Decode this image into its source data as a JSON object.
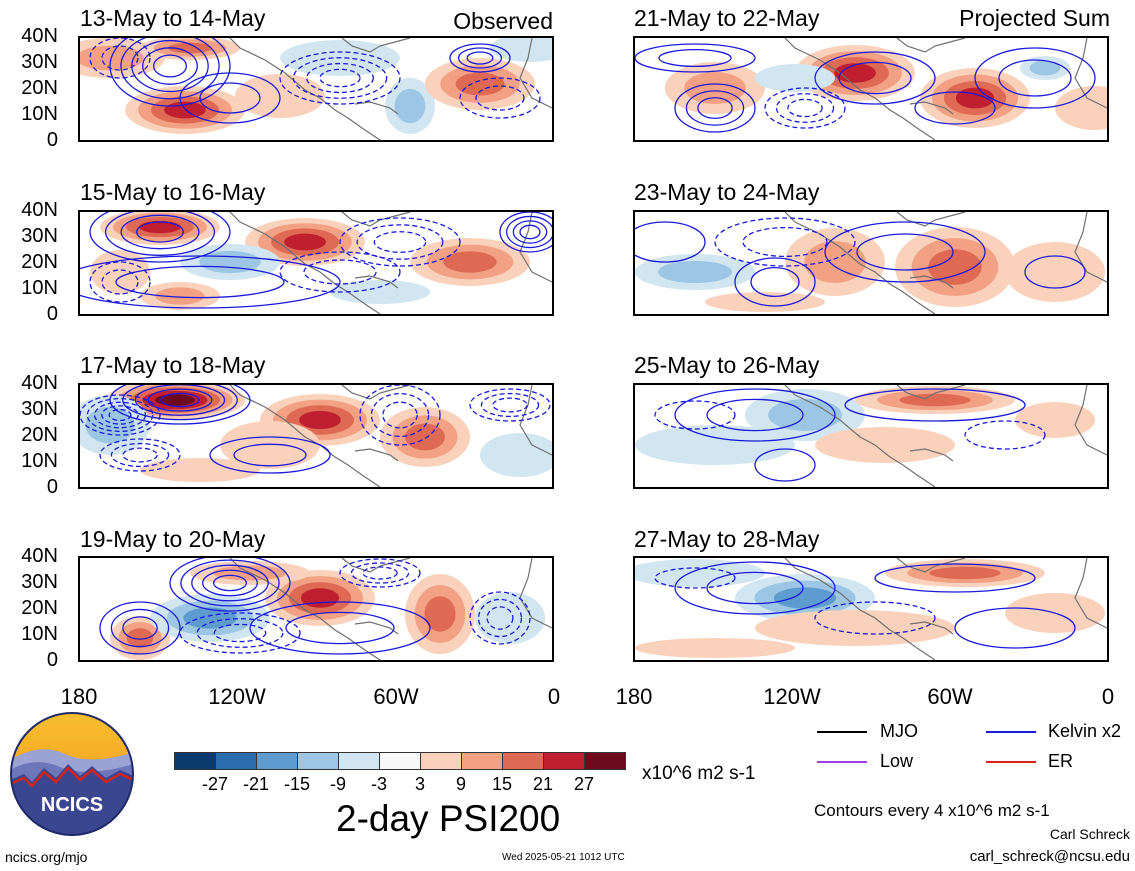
{
  "header": {
    "observed_label": "Observed",
    "projected_label": "Projected Sum"
  },
  "panels_left": [
    {
      "title": "13-May to 14-May"
    },
    {
      "title": "15-May to 16-May"
    },
    {
      "title": "17-May to 18-May"
    },
    {
      "title": "19-May to 20-May"
    }
  ],
  "panels_right": [
    {
      "title": "21-May to 22-May"
    },
    {
      "title": "23-May to 24-May"
    },
    {
      "title": "25-May to 26-May"
    },
    {
      "title": "27-May to 28-May"
    }
  ],
  "y_ticks": [
    "40N",
    "30N",
    "20N",
    "10N",
    "0"
  ],
  "x_ticks": [
    "180",
    "120W",
    "60W",
    "0"
  ],
  "legend": [
    {
      "label": "MJO",
      "color": "#000000"
    },
    {
      "label": "Kelvin x2",
      "color": "#1a1adc"
    },
    {
      "label": "Low",
      "color": "#a040e0"
    },
    {
      "label": "ER",
      "color": "#e02020"
    }
  ],
  "colorbar": {
    "colors": [
      "#0b3a6e",
      "#2c6db0",
      "#5e9ccf",
      "#9cc6e3",
      "#d2e6f2",
      "#f8f8f8",
      "#fad2bc",
      "#f2a184",
      "#de6a55",
      "#bf1f2e",
      "#6e0a1e"
    ],
    "tick_labels": [
      "-27",
      "-21",
      "-15",
      "-9",
      "-3",
      "3",
      "9",
      "15",
      "21",
      "27"
    ],
    "units": "x10^6 m2 s-1"
  },
  "main_title": "2-day PSI200",
  "contour_note": "Contours every 4 x10^6 m2 s-1",
  "author": "Carl Schreck",
  "email": "carl_schreck@ncsu.edu",
  "url": "ncics.org/mjo",
  "timestamp": "Wed 2025-05-21 1012 UTC",
  "logo_text": "NCICS"
}
